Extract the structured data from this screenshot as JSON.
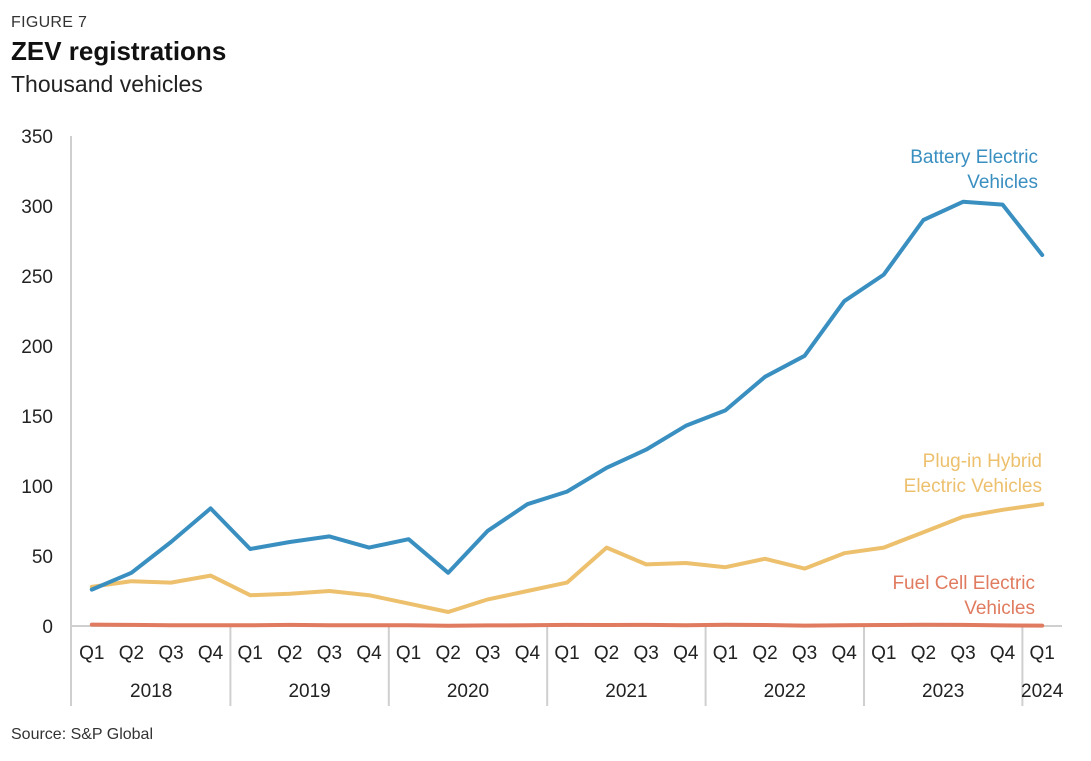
{
  "figure_label": "FIGURE 7",
  "source": "Source: S&P Global",
  "chart_data": {
    "type": "line",
    "title": "ZEV registrations",
    "subtitle": "Thousand vehicles",
    "ylim": [
      0,
      350
    ],
    "yticks": [
      0,
      50,
      100,
      150,
      200,
      250,
      300,
      350
    ],
    "categories": [
      "Q1",
      "Q2",
      "Q3",
      "Q4",
      "Q1",
      "Q2",
      "Q3",
      "Q4",
      "Q1",
      "Q2",
      "Q3",
      "Q4",
      "Q1",
      "Q2",
      "Q3",
      "Q4",
      "Q1",
      "Q2",
      "Q3",
      "Q4",
      "Q1",
      "Q2",
      "Q3",
      "Q4",
      "Q1"
    ],
    "years": [
      {
        "label": "2018",
        "quarters": 4
      },
      {
        "label": "2019",
        "quarters": 4
      },
      {
        "label": "2020",
        "quarters": 4
      },
      {
        "label": "2021",
        "quarters": 4
      },
      {
        "label": "2022",
        "quarters": 4
      },
      {
        "label": "2023",
        "quarters": 4
      },
      {
        "label": "2024",
        "quarters": 1
      }
    ],
    "grid": false,
    "series": [
      {
        "name": "Battery Electric Vehicles",
        "label_lines": [
          "Battery Electric",
          "Vehicles"
        ],
        "color": "#3A8FC1",
        "values": [
          26,
          38,
          60,
          84,
          55,
          60,
          64,
          56,
          62,
          38,
          68,
          87,
          96,
          113,
          126,
          143,
          154,
          178,
          193,
          232,
          251,
          290,
          303,
          301,
          265
        ]
      },
      {
        "name": "Plug-in Hybrid Electric Vehicles",
        "label_lines": [
          "Plug-in Hybrid",
          "Electric Vehicles"
        ],
        "color": "#EDC06E",
        "values": [
          28,
          32,
          31,
          36,
          22,
          23,
          25,
          22,
          16,
          10,
          19,
          25,
          31,
          56,
          44,
          45,
          42,
          48,
          41,
          52,
          56,
          67,
          78,
          83,
          87
        ]
      },
      {
        "name": "Fuel Cell Electric Vehicles",
        "label_lines": [
          "Fuel Cell Electric",
          "Vehicles"
        ],
        "color": "#E07B5F",
        "values": [
          1,
          0.8,
          0.5,
          0.6,
          0.5,
          0.8,
          0.6,
          0.5,
          0.5,
          0.2,
          0.4,
          0.5,
          0.8,
          0.7,
          0.8,
          0.6,
          0.9,
          0.7,
          0.3,
          0.6,
          0.7,
          0.9,
          0.8,
          0.4,
          0.3
        ]
      }
    ]
  }
}
